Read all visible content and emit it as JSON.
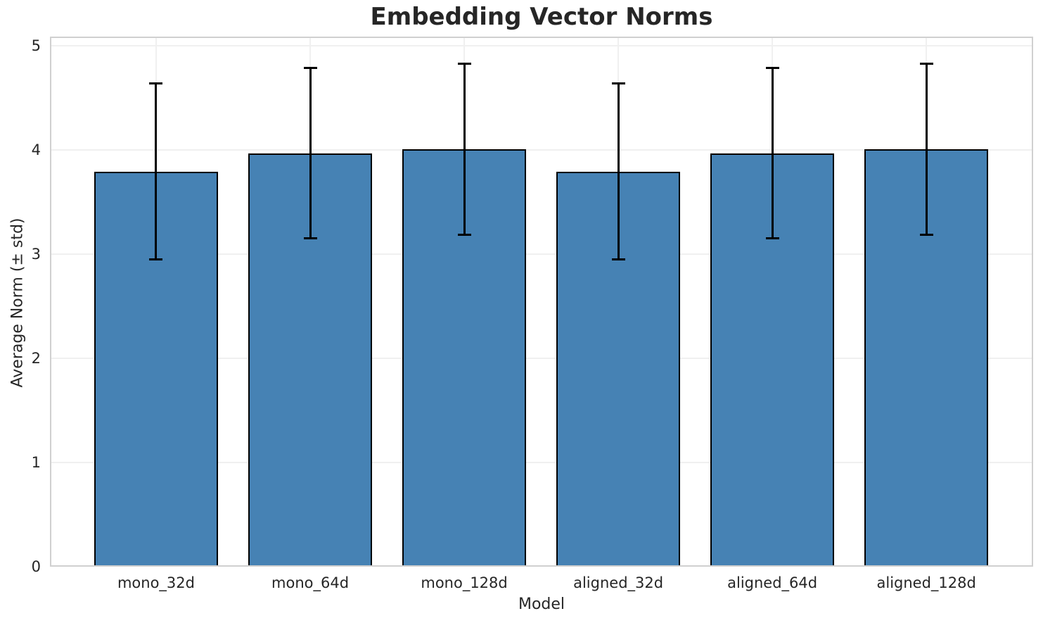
{
  "chart_data": {
    "type": "bar",
    "title": "Embedding Vector Norms",
    "xlabel": "Model",
    "ylabel": "Average Norm (± std)",
    "categories": [
      "mono_32d",
      "mono_64d",
      "mono_128d",
      "aligned_32d",
      "aligned_64d",
      "aligned_128d"
    ],
    "values": [
      3.79,
      3.97,
      4.01,
      3.79,
      3.97,
      4.01
    ],
    "std": [
      0.85,
      0.82,
      0.82,
      0.85,
      0.82,
      0.82
    ],
    "error_low": [
      2.95,
      3.15,
      3.19,
      2.95,
      3.15,
      3.19
    ],
    "error_high": [
      4.64,
      4.79,
      4.83,
      4.64,
      4.79,
      4.83
    ],
    "yticks": [
      0,
      1,
      2,
      3,
      4,
      5
    ],
    "ylim": [
      0,
      5.09
    ],
    "grid": true,
    "legend_position": "none",
    "colors": {
      "bar_fill": "#4682B4",
      "bar_edge": "#000000",
      "error_bar": "#000000",
      "grid_line": "#f0f0f0",
      "spine": "#d0d0d0",
      "text": "#262626",
      "background": "#ffffff"
    }
  }
}
